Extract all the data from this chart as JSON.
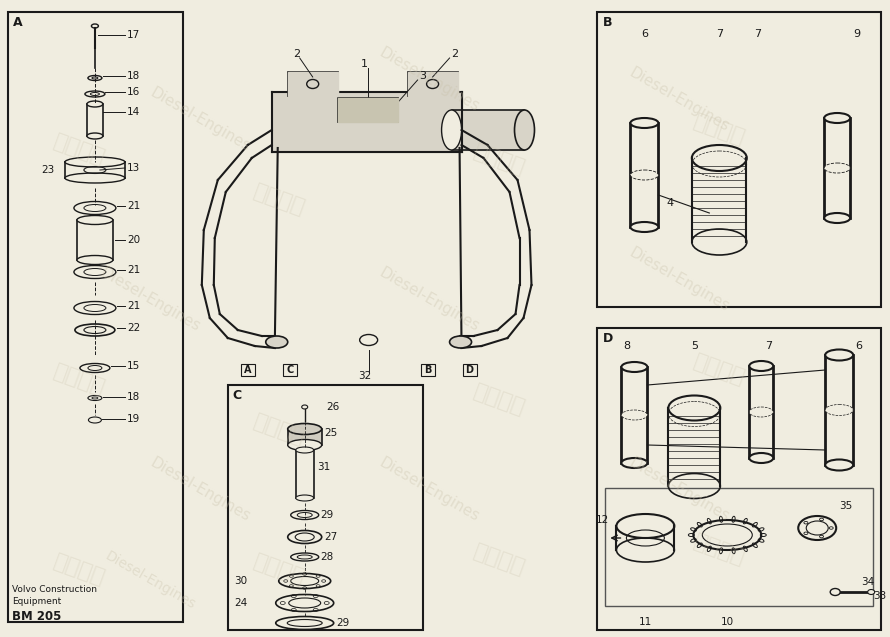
{
  "bg_color": "#f0ede0",
  "watermark_color": "#c8c0a8",
  "line_color": "#1a1a1a",
  "text_color": "#1a1a1a",
  "footer_line1": "Volvo Construction",
  "footer_line2": "Equipment",
  "footer_line3": "BM 205"
}
